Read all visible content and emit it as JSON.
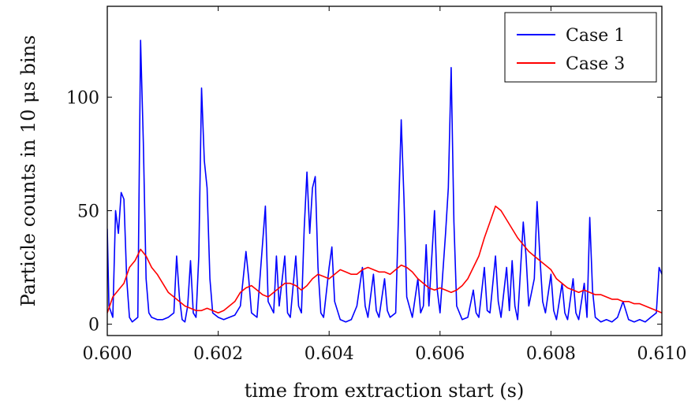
{
  "chart_data": {
    "type": "line",
    "xlabel": "time from extraction start (s)",
    "ylabel": "Particle counts in 10 μs bins",
    "xlim": [
      0.6,
      0.61
    ],
    "ylim": [
      -5,
      140
    ],
    "xticks": [
      0.6,
      0.602,
      0.604,
      0.606,
      0.608,
      0.61
    ],
    "xtick_labels": [
      "0.600",
      "0.602",
      "0.604",
      "0.606",
      "0.608",
      "0.610"
    ],
    "yticks": [
      0,
      50,
      100
    ],
    "ytick_labels": [
      "0",
      "50",
      "100"
    ],
    "grid": false,
    "legend_position": "top-right",
    "colors": {
      "case1": "#0000ff",
      "case3": "#ff0000",
      "axis": "#000000"
    },
    "series": [
      {
        "name": "Case 1",
        "color": "#0000ff",
        "points": [
          [
            0.6,
            42
          ],
          [
            0.60003,
            8
          ],
          [
            0.6001,
            3
          ],
          [
            0.60015,
            50
          ],
          [
            0.6002,
            40
          ],
          [
            0.60025,
            58
          ],
          [
            0.6003,
            55
          ],
          [
            0.60035,
            20
          ],
          [
            0.6004,
            3
          ],
          [
            0.60045,
            1
          ],
          [
            0.6005,
            2
          ],
          [
            0.60055,
            3
          ],
          [
            0.6006,
            125
          ],
          [
            0.60065,
            80
          ],
          [
            0.6007,
            20
          ],
          [
            0.60075,
            5
          ],
          [
            0.6008,
            3
          ],
          [
            0.6009,
            2
          ],
          [
            0.601,
            2
          ],
          [
            0.6011,
            3
          ],
          [
            0.6012,
            5
          ],
          [
            0.60125,
            30
          ],
          [
            0.6013,
            12
          ],
          [
            0.60135,
            2
          ],
          [
            0.6014,
            1
          ],
          [
            0.60145,
            8
          ],
          [
            0.6015,
            28
          ],
          [
            0.60155,
            5
          ],
          [
            0.6016,
            3
          ],
          [
            0.60165,
            30
          ],
          [
            0.6017,
            104
          ],
          [
            0.60175,
            72
          ],
          [
            0.6018,
            60
          ],
          [
            0.60185,
            20
          ],
          [
            0.6019,
            5
          ],
          [
            0.602,
            3
          ],
          [
            0.6021,
            2
          ],
          [
            0.6022,
            3
          ],
          [
            0.6023,
            4
          ],
          [
            0.6024,
            8
          ],
          [
            0.6025,
            32
          ],
          [
            0.60255,
            20
          ],
          [
            0.6026,
            5
          ],
          [
            0.6027,
            3
          ],
          [
            0.60285,
            52
          ],
          [
            0.6029,
            10
          ],
          [
            0.603,
            5
          ],
          [
            0.60305,
            30
          ],
          [
            0.6031,
            8
          ],
          [
            0.6032,
            30
          ],
          [
            0.60325,
            5
          ],
          [
            0.6033,
            3
          ],
          [
            0.6034,
            30
          ],
          [
            0.60345,
            8
          ],
          [
            0.6035,
            5
          ],
          [
            0.60355,
            42
          ],
          [
            0.6036,
            67
          ],
          [
            0.60365,
            40
          ],
          [
            0.6037,
            60
          ],
          [
            0.60375,
            65
          ],
          [
            0.6038,
            25
          ],
          [
            0.60385,
            5
          ],
          [
            0.6039,
            3
          ],
          [
            0.604,
            25
          ],
          [
            0.60405,
            34
          ],
          [
            0.6041,
            10
          ],
          [
            0.6042,
            2
          ],
          [
            0.6043,
            1
          ],
          [
            0.6044,
            2
          ],
          [
            0.6045,
            8
          ],
          [
            0.6046,
            25
          ],
          [
            0.60465,
            8
          ],
          [
            0.6047,
            3
          ],
          [
            0.6048,
            22
          ],
          [
            0.60485,
            6
          ],
          [
            0.6049,
            3
          ],
          [
            0.605,
            20
          ],
          [
            0.60505,
            6
          ],
          [
            0.6051,
            3
          ],
          [
            0.6052,
            5
          ],
          [
            0.6053,
            90
          ],
          [
            0.60535,
            55
          ],
          [
            0.6054,
            12
          ],
          [
            0.6055,
            3
          ],
          [
            0.6056,
            20
          ],
          [
            0.60565,
            5
          ],
          [
            0.6057,
            8
          ],
          [
            0.60575,
            35
          ],
          [
            0.6058,
            8
          ],
          [
            0.6059,
            50
          ],
          [
            0.60595,
            15
          ],
          [
            0.606,
            5
          ],
          [
            0.6061,
            40
          ],
          [
            0.60615,
            60
          ],
          [
            0.6062,
            113
          ],
          [
            0.60625,
            45
          ],
          [
            0.6063,
            8
          ],
          [
            0.6064,
            2
          ],
          [
            0.6065,
            3
          ],
          [
            0.6066,
            15
          ],
          [
            0.60665,
            5
          ],
          [
            0.6067,
            3
          ],
          [
            0.6068,
            25
          ],
          [
            0.60685,
            6
          ],
          [
            0.6069,
            5
          ],
          [
            0.607,
            30
          ],
          [
            0.60705,
            10
          ],
          [
            0.6071,
            3
          ],
          [
            0.6072,
            25
          ],
          [
            0.60725,
            6
          ],
          [
            0.6073,
            28
          ],
          [
            0.60735,
            8
          ],
          [
            0.6074,
            2
          ],
          [
            0.6075,
            45
          ],
          [
            0.60755,
            30
          ],
          [
            0.6076,
            8
          ],
          [
            0.6077,
            20
          ],
          [
            0.60775,
            54
          ],
          [
            0.6078,
            30
          ],
          [
            0.60785,
            10
          ],
          [
            0.6079,
            5
          ],
          [
            0.608,
            22
          ],
          [
            0.60805,
            6
          ],
          [
            0.6081,
            2
          ],
          [
            0.6082,
            18
          ],
          [
            0.60825,
            5
          ],
          [
            0.6083,
            2
          ],
          [
            0.6084,
            20
          ],
          [
            0.60845,
            5
          ],
          [
            0.6085,
            2
          ],
          [
            0.6086,
            18
          ],
          [
            0.60865,
            3
          ],
          [
            0.6087,
            47
          ],
          [
            0.60875,
            15
          ],
          [
            0.6088,
            3
          ],
          [
            0.6089,
            1
          ],
          [
            0.609,
            2
          ],
          [
            0.6091,
            1
          ],
          [
            0.6092,
            3
          ],
          [
            0.6093,
            10
          ],
          [
            0.6094,
            2
          ],
          [
            0.6095,
            1
          ],
          [
            0.6096,
            2
          ],
          [
            0.6097,
            1
          ],
          [
            0.6098,
            3
          ],
          [
            0.6099,
            5
          ],
          [
            0.60995,
            25
          ],
          [
            0.61,
            22
          ]
        ]
      },
      {
        "name": "Case 3",
        "color": "#ff0000",
        "points": [
          [
            0.6,
            5
          ],
          [
            0.6001,
            12
          ],
          [
            0.6002,
            15
          ],
          [
            0.6003,
            18
          ],
          [
            0.6004,
            25
          ],
          [
            0.6005,
            28
          ],
          [
            0.6006,
            33
          ],
          [
            0.6007,
            30
          ],
          [
            0.6008,
            25
          ],
          [
            0.6009,
            22
          ],
          [
            0.601,
            18
          ],
          [
            0.6011,
            14
          ],
          [
            0.6012,
            12
          ],
          [
            0.6013,
            10
          ],
          [
            0.6014,
            8
          ],
          [
            0.6015,
            7
          ],
          [
            0.6016,
            6
          ],
          [
            0.6017,
            6
          ],
          [
            0.6018,
            7
          ],
          [
            0.6019,
            6
          ],
          [
            0.602,
            5
          ],
          [
            0.6021,
            6
          ],
          [
            0.6022,
            8
          ],
          [
            0.6023,
            10
          ],
          [
            0.6024,
            14
          ],
          [
            0.6025,
            16
          ],
          [
            0.6026,
            17
          ],
          [
            0.6027,
            15
          ],
          [
            0.6028,
            13
          ],
          [
            0.6029,
            12
          ],
          [
            0.603,
            14
          ],
          [
            0.6031,
            16
          ],
          [
            0.6032,
            18
          ],
          [
            0.6033,
            18
          ],
          [
            0.6034,
            17
          ],
          [
            0.6035,
            15
          ],
          [
            0.6036,
            17
          ],
          [
            0.6037,
            20
          ],
          [
            0.6038,
            22
          ],
          [
            0.6039,
            21
          ],
          [
            0.604,
            20
          ],
          [
            0.6041,
            22
          ],
          [
            0.6042,
            24
          ],
          [
            0.6043,
            23
          ],
          [
            0.6044,
            22
          ],
          [
            0.6045,
            22
          ],
          [
            0.6046,
            24
          ],
          [
            0.6047,
            25
          ],
          [
            0.6048,
            24
          ],
          [
            0.6049,
            23
          ],
          [
            0.605,
            23
          ],
          [
            0.6051,
            22
          ],
          [
            0.6052,
            24
          ],
          [
            0.6053,
            26
          ],
          [
            0.6054,
            25
          ],
          [
            0.6055,
            23
          ],
          [
            0.6056,
            20
          ],
          [
            0.6057,
            18
          ],
          [
            0.6058,
            16
          ],
          [
            0.6059,
            15
          ],
          [
            0.606,
            16
          ],
          [
            0.6061,
            15
          ],
          [
            0.6062,
            14
          ],
          [
            0.6063,
            15
          ],
          [
            0.6064,
            17
          ],
          [
            0.6065,
            20
          ],
          [
            0.6066,
            25
          ],
          [
            0.6067,
            30
          ],
          [
            0.6068,
            38
          ],
          [
            0.6069,
            45
          ],
          [
            0.607,
            52
          ],
          [
            0.6071,
            50
          ],
          [
            0.6072,
            46
          ],
          [
            0.6073,
            42
          ],
          [
            0.6074,
            38
          ],
          [
            0.6075,
            35
          ],
          [
            0.6076,
            32
          ],
          [
            0.6077,
            30
          ],
          [
            0.6078,
            28
          ],
          [
            0.6079,
            26
          ],
          [
            0.608,
            24
          ],
          [
            0.6081,
            20
          ],
          [
            0.6082,
            18
          ],
          [
            0.6083,
            16
          ],
          [
            0.6084,
            15
          ],
          [
            0.6085,
            14
          ],
          [
            0.6086,
            15
          ],
          [
            0.6087,
            14
          ],
          [
            0.6088,
            13
          ],
          [
            0.6089,
            13
          ],
          [
            0.609,
            12
          ],
          [
            0.6091,
            11
          ],
          [
            0.6092,
            11
          ],
          [
            0.6093,
            10
          ],
          [
            0.6094,
            10
          ],
          [
            0.6095,
            9
          ],
          [
            0.6096,
            9
          ],
          [
            0.6097,
            8
          ],
          [
            0.6098,
            7
          ],
          [
            0.6099,
            6
          ],
          [
            0.61,
            5
          ]
        ]
      }
    ]
  }
}
